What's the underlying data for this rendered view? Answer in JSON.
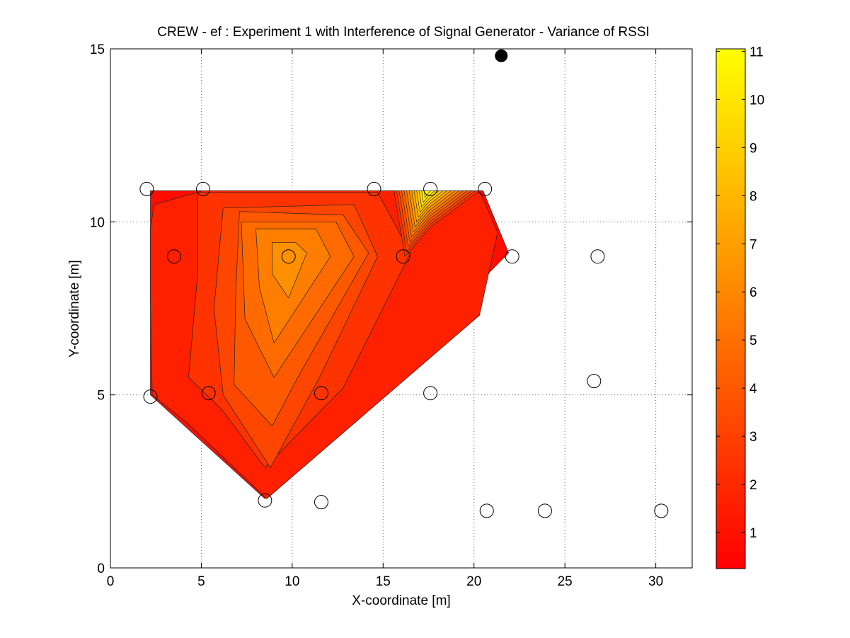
{
  "chart_data": {
    "type": "contour",
    "title": "CREW - ef : Experiment 1 with Interference of Signal Generator - Variance of RSSI",
    "xlabel": "X-coordinate [m]",
    "ylabel": "Y-coordinate [m]",
    "xlim": [
      0,
      32
    ],
    "ylim": [
      0,
      15
    ],
    "xticks": [
      "0",
      "5",
      "10",
      "15",
      "20",
      "25",
      "30"
    ],
    "yticks": [
      "0",
      "5",
      "10",
      "15"
    ],
    "grid": true,
    "colorbar": {
      "min": 0.25,
      "max": 11.05,
      "ticks": [
        "1",
        "2",
        "3",
        "4",
        "5",
        "6",
        "7",
        "8",
        "9",
        "10",
        "11"
      ],
      "colormap": "autumn",
      "color_low": "#ff0000",
      "color_high": "#ffff00"
    },
    "nodes": [
      {
        "x": 2.0,
        "y": 10.95
      },
      {
        "x": 5.1,
        "y": 10.95
      },
      {
        "x": 14.5,
        "y": 10.95
      },
      {
        "x": 17.6,
        "y": 10.95
      },
      {
        "x": 20.6,
        "y": 10.95
      },
      {
        "x": 3.5,
        "y": 9.0
      },
      {
        "x": 9.8,
        "y": 9.0
      },
      {
        "x": 16.1,
        "y": 9.0
      },
      {
        "x": 22.1,
        "y": 9.0
      },
      {
        "x": 26.8,
        "y": 9.0
      },
      {
        "x": 2.2,
        "y": 4.95
      },
      {
        "x": 5.4,
        "y": 5.05
      },
      {
        "x": 11.6,
        "y": 5.05
      },
      {
        "x": 17.6,
        "y": 5.05
      },
      {
        "x": 26.6,
        "y": 5.4
      },
      {
        "x": 8.5,
        "y": 1.95
      },
      {
        "x": 11.6,
        "y": 1.9
      },
      {
        "x": 20.7,
        "y": 1.65
      },
      {
        "x": 23.9,
        "y": 1.65
      },
      {
        "x": 30.3,
        "y": 1.65
      }
    ],
    "interferer": {
      "x": 21.5,
      "y": 14.8
    },
    "contour_levels": [
      {
        "value": 0.8,
        "polygon": [
          [
            2.2,
            10.9
          ],
          [
            20.5,
            10.9
          ],
          [
            21.9,
            9.1
          ],
          [
            8.5,
            2.0
          ],
          [
            2.2,
            5.0
          ]
        ]
      },
      {
        "value": 1.6,
        "polygon": [
          [
            2.2,
            9.8
          ],
          [
            2.4,
            10.5
          ],
          [
            5.1,
            10.9
          ],
          [
            20.3,
            10.9
          ],
          [
            21.3,
            9.7
          ],
          [
            20.3,
            7.3
          ],
          [
            8.6,
            2.0
          ],
          [
            4.2,
            4.2
          ],
          [
            2.3,
            5.0
          ],
          [
            2.2,
            7.8
          ]
        ]
      },
      {
        "value": 2.4,
        "polygon": [
          [
            4.8,
            10.85
          ],
          [
            14.7,
            10.85
          ],
          [
            16.5,
            9.1
          ],
          [
            12.8,
            5.2
          ],
          [
            8.5,
            2.9
          ],
          [
            6.1,
            4.6
          ],
          [
            4.3,
            5.5
          ],
          [
            4.8,
            8.5
          ]
        ]
      },
      {
        "value": 3.2,
        "polygon": [
          [
            6.2,
            10.4
          ],
          [
            13.4,
            10.5
          ],
          [
            14.7,
            9.0
          ],
          [
            11.5,
            5.5
          ],
          [
            8.8,
            2.9
          ],
          [
            6.2,
            5.0
          ],
          [
            5.7,
            7.5
          ]
        ]
      },
      {
        "value": 4.0,
        "polygon": [
          [
            7.1,
            10.3
          ],
          [
            12.8,
            10.2
          ],
          [
            14.2,
            9.1
          ],
          [
            10.3,
            5.5
          ],
          [
            8.9,
            4.1
          ],
          [
            6.8,
            5.3
          ],
          [
            6.9,
            8.0
          ]
        ]
      },
      {
        "value": 4.8,
        "polygon": [
          [
            7.2,
            10.0
          ],
          [
            12.4,
            10.0
          ],
          [
            13.4,
            9.0
          ],
          [
            9.0,
            5.5
          ],
          [
            7.4,
            7.2
          ]
        ]
      },
      {
        "value": 5.6,
        "polygon": [
          [
            8.0,
            9.8
          ],
          [
            11.3,
            9.8
          ],
          [
            12.1,
            9.0
          ],
          [
            9.0,
            6.5
          ],
          [
            8.2,
            8.1
          ]
        ]
      },
      {
        "value": 6.4,
        "polygon": [
          [
            8.9,
            9.4
          ],
          [
            10.2,
            9.4
          ],
          [
            10.8,
            9.1
          ],
          [
            9.8,
            7.8
          ],
          [
            8.9,
            8.5
          ]
        ]
      }
    ],
    "hotspot": {
      "peak_x": 17.4,
      "peak_y": 10.85,
      "peak_value": 10.9,
      "apex_x": 15.6,
      "apex_y": 10.9,
      "corner_x": 20.3,
      "corner_y": 10.9,
      "band_count": 13
    }
  }
}
